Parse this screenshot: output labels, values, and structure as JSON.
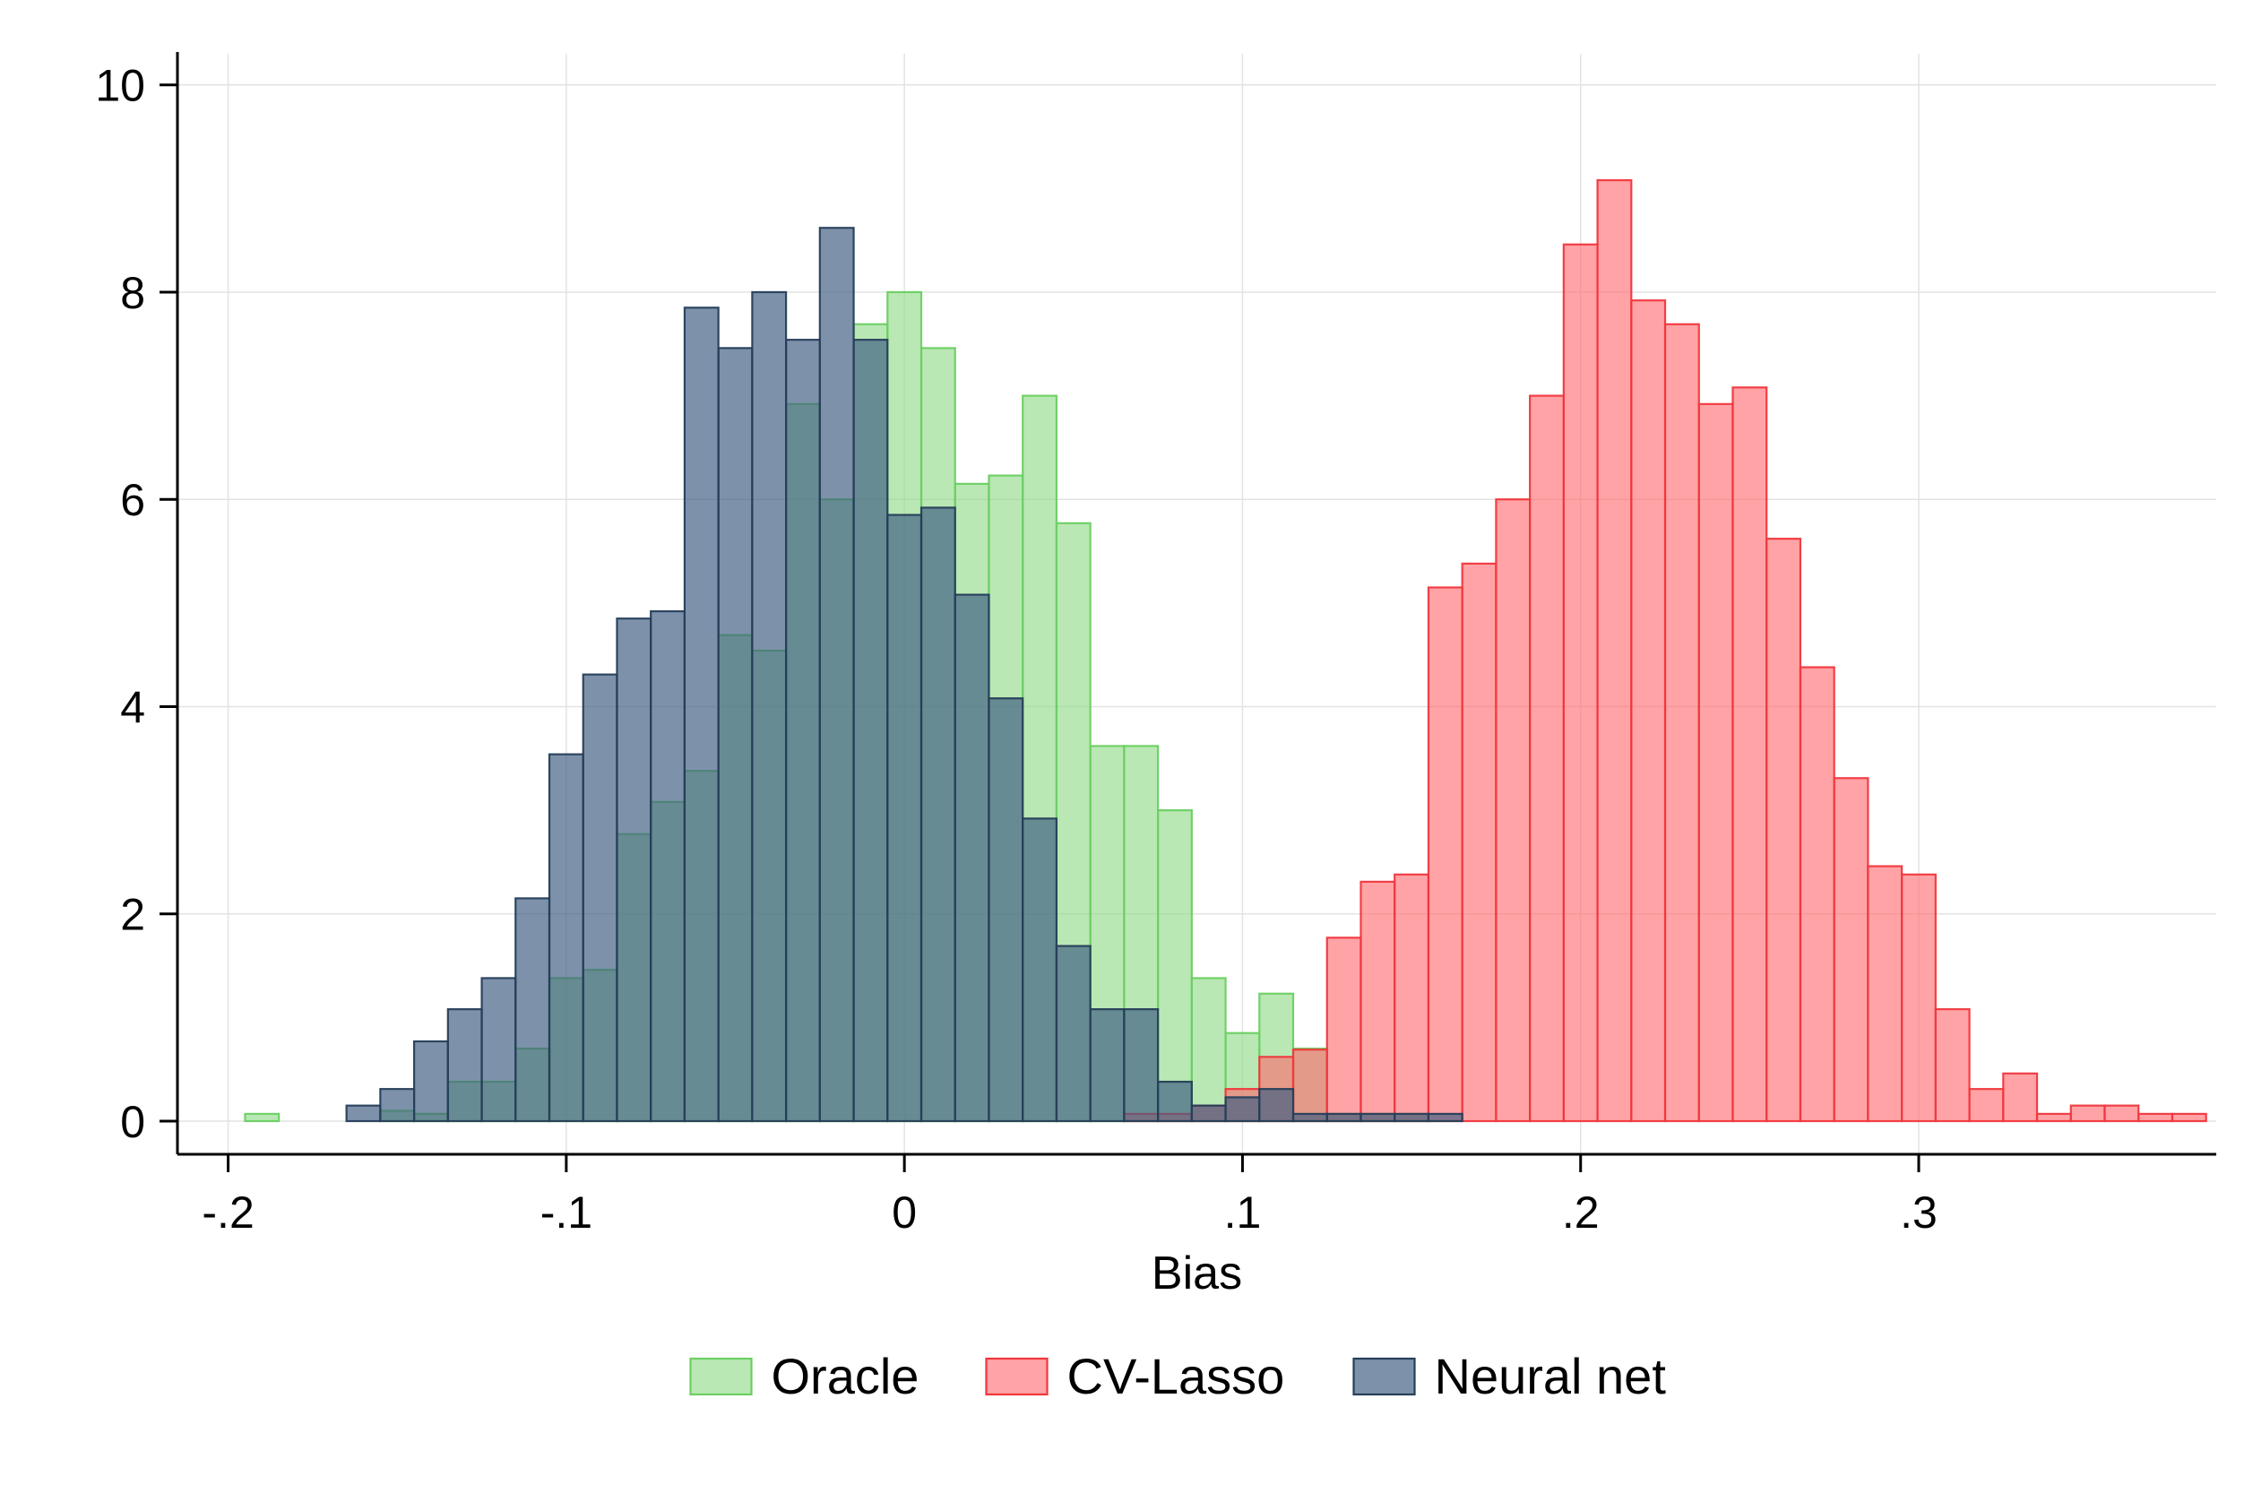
{
  "chart_data": {
    "type": "bar",
    "subtype": "overlaid-histogram",
    "title": "",
    "xlabel": "Bias",
    "ylabel": "",
    "xlim": [
      -0.215,
      0.388
    ],
    "ylim": [
      -0.32,
      10.3
    ],
    "bin_width": 0.01,
    "x_ticks": [
      -0.2,
      -0.1,
      0,
      0.1,
      0.2,
      0.3
    ],
    "x_tick_labels": [
      "-.2",
      "-.1",
      "0",
      ".1",
      ".2",
      ".3"
    ],
    "y_ticks": [
      0,
      2,
      4,
      6,
      8,
      10
    ],
    "y_tick_labels": [
      "0",
      "2",
      "4",
      "6",
      "8",
      "10"
    ],
    "grid": true,
    "legend_position": "bottom",
    "series": [
      {
        "name": "Oracle",
        "fill": "#93dc8c",
        "stroke": "#6ccf62",
        "opacity": 0.65,
        "bins": [
          {
            "x": -0.19,
            "y": 0.07
          },
          {
            "x": -0.15,
            "y": 0.1
          },
          {
            "x": -0.14,
            "y": 0.07
          },
          {
            "x": -0.13,
            "y": 0.38
          },
          {
            "x": -0.12,
            "y": 0.38
          },
          {
            "x": -0.11,
            "y": 0.7
          },
          {
            "x": -0.1,
            "y": 1.38
          },
          {
            "x": -0.09,
            "y": 1.46
          },
          {
            "x": -0.08,
            "y": 2.77
          },
          {
            "x": -0.07,
            "y": 3.08
          },
          {
            "x": -0.06,
            "y": 3.38
          },
          {
            "x": -0.05,
            "y": 4.69
          },
          {
            "x": -0.04,
            "y": 4.54
          },
          {
            "x": -0.03,
            "y": 6.92
          },
          {
            "x": -0.02,
            "y": 6.0
          },
          {
            "x": -0.01,
            "y": 7.69
          },
          {
            "x": 0.0,
            "y": 8.0
          },
          {
            "x": 0.01,
            "y": 7.46
          },
          {
            "x": 0.02,
            "y": 6.15
          },
          {
            "x": 0.03,
            "y": 6.23
          },
          {
            "x": 0.04,
            "y": 7.0
          },
          {
            "x": 0.05,
            "y": 5.77
          },
          {
            "x": 0.06,
            "y": 3.62
          },
          {
            "x": 0.07,
            "y": 3.62
          },
          {
            "x": 0.08,
            "y": 3.0
          },
          {
            "x": 0.09,
            "y": 1.38
          },
          {
            "x": 0.1,
            "y": 0.85
          },
          {
            "x": 0.11,
            "y": 1.23
          },
          {
            "x": 0.12,
            "y": 0.7
          },
          {
            "x": 0.13,
            "y": 0.07
          },
          {
            "x": 0.14,
            "y": 0.07
          },
          {
            "x": 0.15,
            "y": 0.07
          }
        ]
      },
      {
        "name": "CV-Lasso",
        "fill": "#ff6b70",
        "stroke": "#f0373d",
        "opacity": 0.62,
        "bins": [
          {
            "x": 0.07,
            "y": 0.07
          },
          {
            "x": 0.08,
            "y": 0.07
          },
          {
            "x": 0.09,
            "y": 0.15
          },
          {
            "x": 0.1,
            "y": 0.31
          },
          {
            "x": 0.11,
            "y": 0.62
          },
          {
            "x": 0.12,
            "y": 0.69
          },
          {
            "x": 0.13,
            "y": 1.77
          },
          {
            "x": 0.14,
            "y": 2.31
          },
          {
            "x": 0.15,
            "y": 2.38
          },
          {
            "x": 0.16,
            "y": 5.15
          },
          {
            "x": 0.17,
            "y": 5.38
          },
          {
            "x": 0.18,
            "y": 6.0
          },
          {
            "x": 0.19,
            "y": 7.0
          },
          {
            "x": 0.2,
            "y": 8.46
          },
          {
            "x": 0.21,
            "y": 9.08
          },
          {
            "x": 0.22,
            "y": 7.92
          },
          {
            "x": 0.23,
            "y": 7.69
          },
          {
            "x": 0.24,
            "y": 6.92
          },
          {
            "x": 0.25,
            "y": 7.08
          },
          {
            "x": 0.26,
            "y": 5.62
          },
          {
            "x": 0.27,
            "y": 4.38
          },
          {
            "x": 0.28,
            "y": 3.31
          },
          {
            "x": 0.29,
            "y": 2.46
          },
          {
            "x": 0.3,
            "y": 2.38
          },
          {
            "x": 0.31,
            "y": 1.08
          },
          {
            "x": 0.32,
            "y": 0.31
          },
          {
            "x": 0.33,
            "y": 0.46
          },
          {
            "x": 0.34,
            "y": 0.07
          },
          {
            "x": 0.35,
            "y": 0.15
          },
          {
            "x": 0.36,
            "y": 0.15
          },
          {
            "x": 0.37,
            "y": 0.07
          },
          {
            "x": 0.38,
            "y": 0.07
          }
        ]
      },
      {
        "name": "Neural net",
        "fill": "#3f5f82",
        "stroke": "#263e5a",
        "opacity": 0.68,
        "bins": [
          {
            "x": -0.16,
            "y": 0.15
          },
          {
            "x": -0.15,
            "y": 0.31
          },
          {
            "x": -0.14,
            "y": 0.77
          },
          {
            "x": -0.13,
            "y": 1.08
          },
          {
            "x": -0.12,
            "y": 1.38
          },
          {
            "x": -0.11,
            "y": 2.15
          },
          {
            "x": -0.1,
            "y": 3.54
          },
          {
            "x": -0.09,
            "y": 4.31
          },
          {
            "x": -0.08,
            "y": 4.85
          },
          {
            "x": -0.07,
            "y": 4.92
          },
          {
            "x": -0.06,
            "y": 7.85
          },
          {
            "x": -0.05,
            "y": 7.46
          },
          {
            "x": -0.04,
            "y": 8.0
          },
          {
            "x": -0.03,
            "y": 7.54
          },
          {
            "x": -0.02,
            "y": 8.62
          },
          {
            "x": -0.01,
            "y": 7.54
          },
          {
            "x": 0.0,
            "y": 5.85
          },
          {
            "x": 0.01,
            "y": 5.92
          },
          {
            "x": 0.02,
            "y": 5.08
          },
          {
            "x": 0.03,
            "y": 4.08
          },
          {
            "x": 0.04,
            "y": 2.92
          },
          {
            "x": 0.05,
            "y": 1.69
          },
          {
            "x": 0.06,
            "y": 1.08
          },
          {
            "x": 0.07,
            "y": 1.08
          },
          {
            "x": 0.08,
            "y": 0.38
          },
          {
            "x": 0.09,
            "y": 0.15
          },
          {
            "x": 0.1,
            "y": 0.23
          },
          {
            "x": 0.11,
            "y": 0.31
          },
          {
            "x": 0.12,
            "y": 0.07
          },
          {
            "x": 0.13,
            "y": 0.07
          },
          {
            "x": 0.14,
            "y": 0.07
          },
          {
            "x": 0.15,
            "y": 0.07
          },
          {
            "x": 0.16,
            "y": 0.07
          }
        ]
      }
    ]
  }
}
